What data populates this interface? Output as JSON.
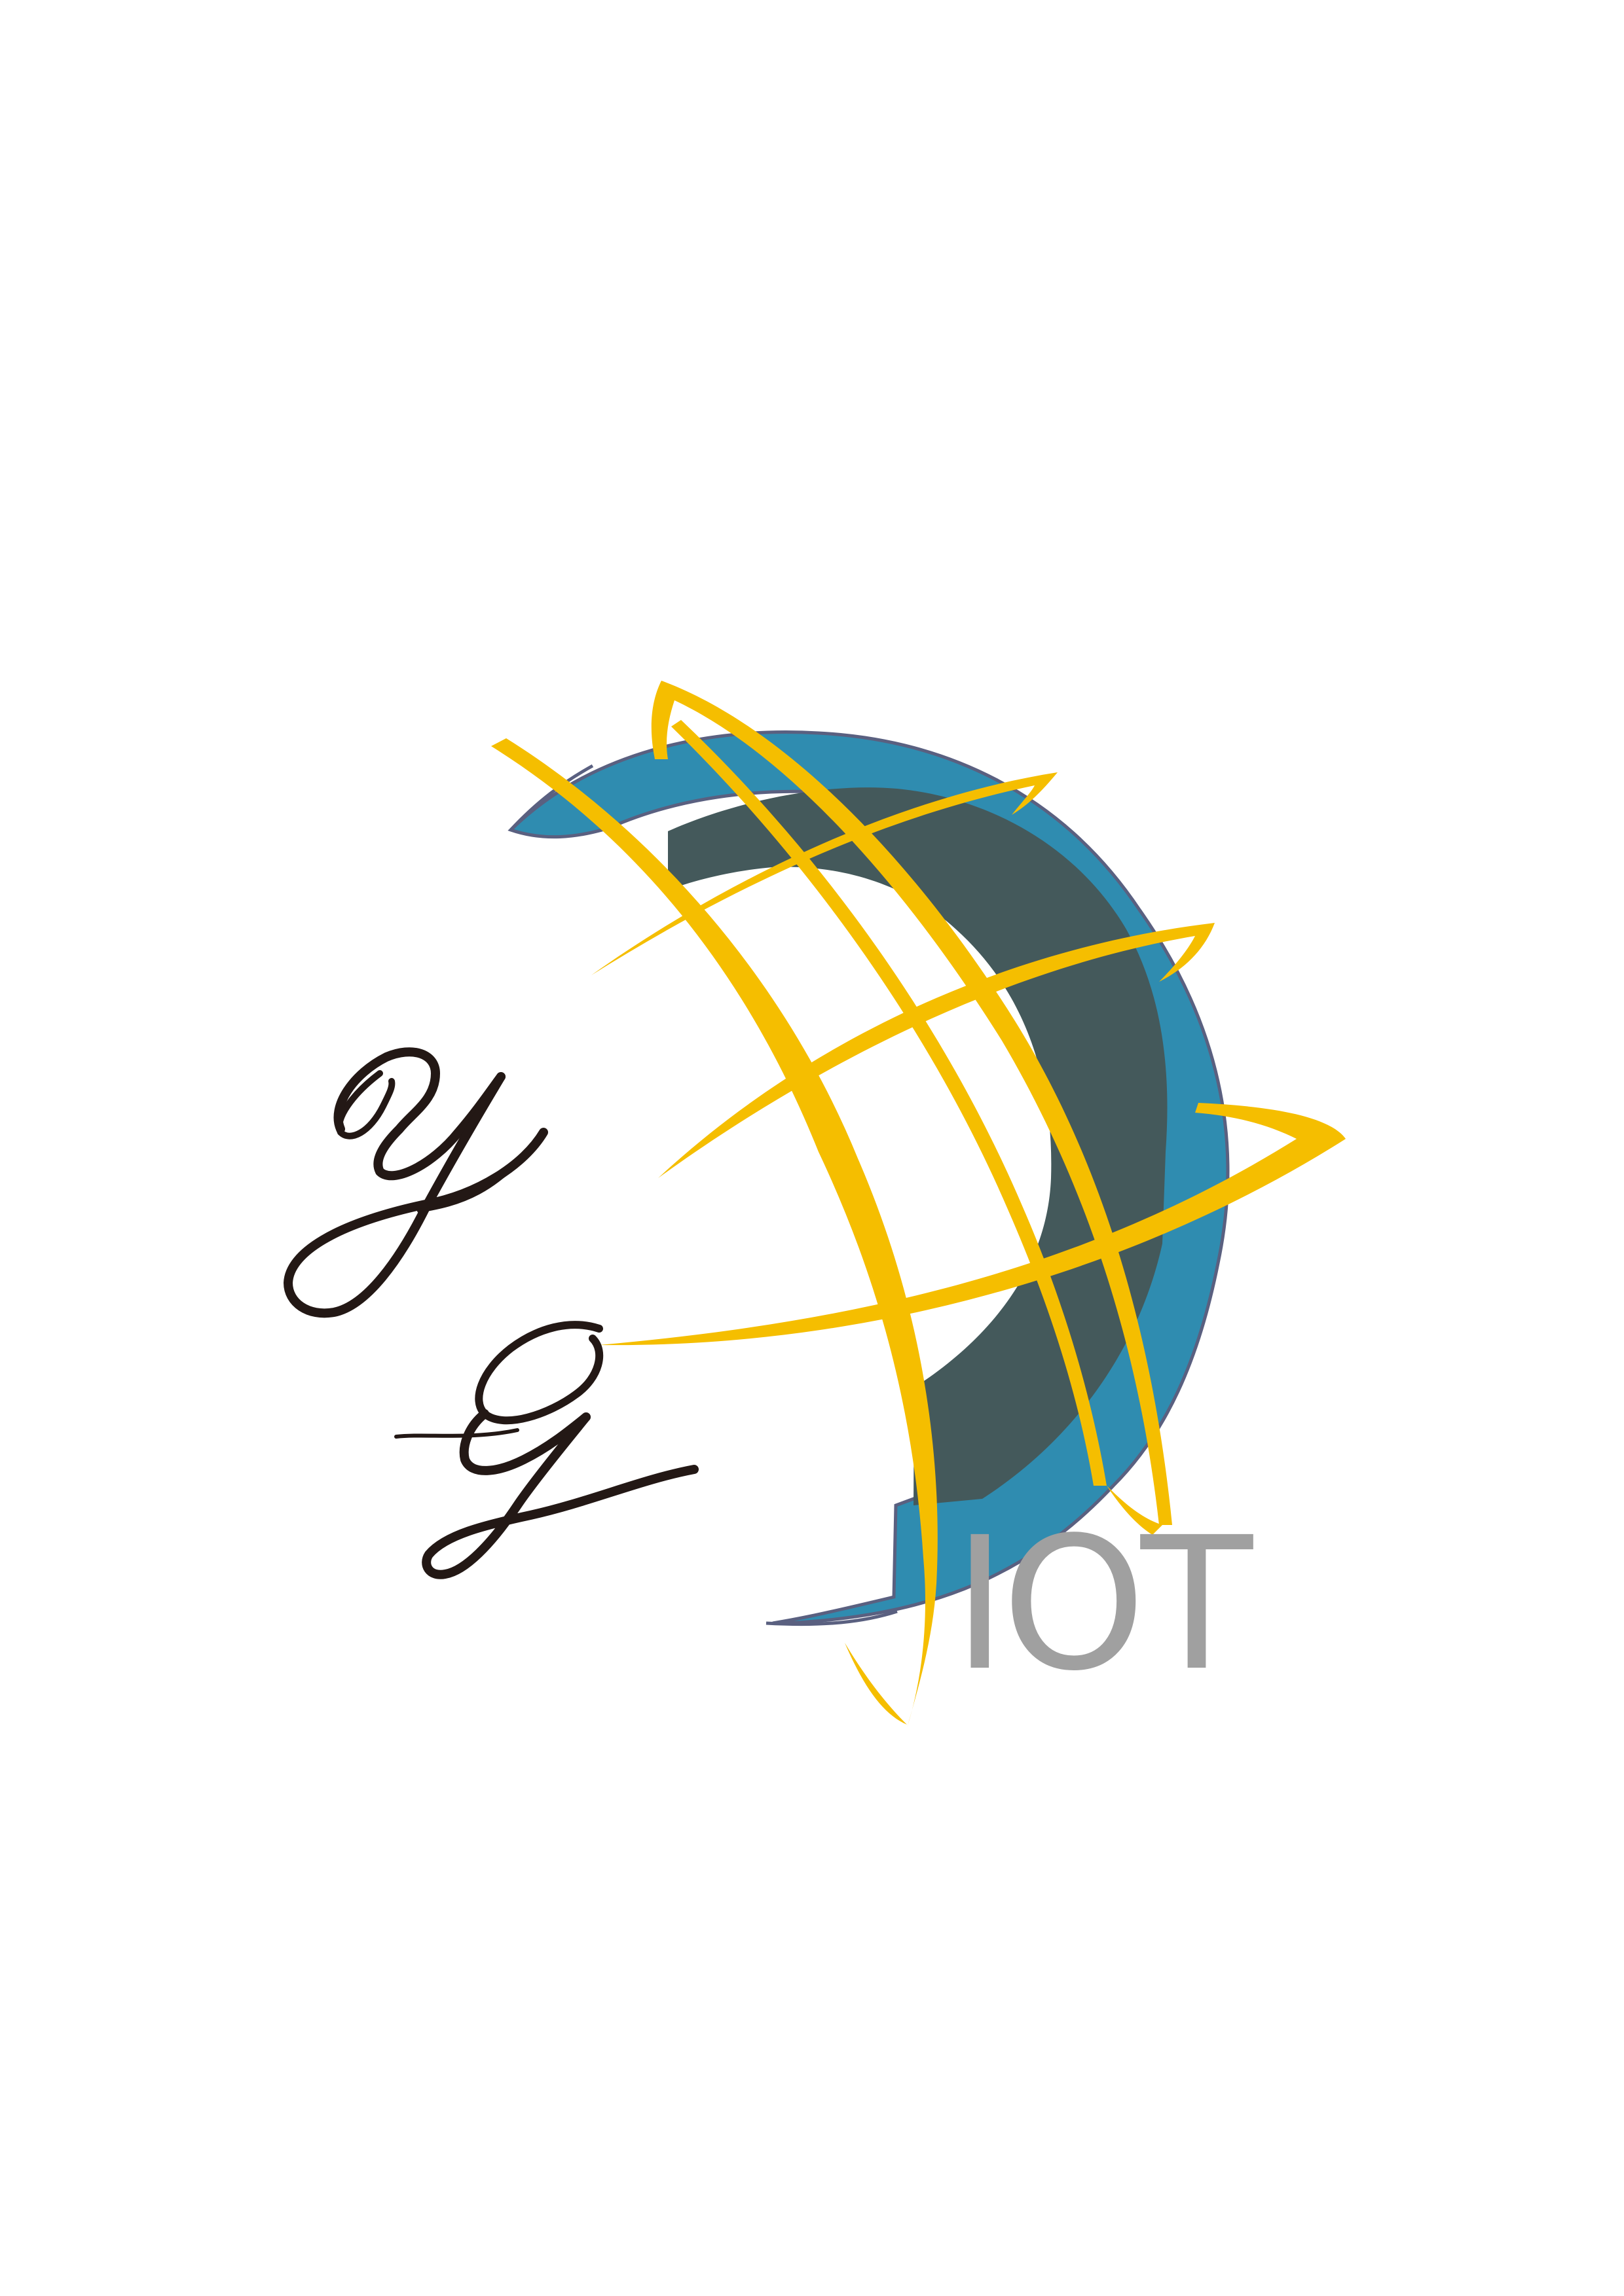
{
  "logo": {
    "monogram_letters": "YG",
    "brand_text": "IOT",
    "colors": {
      "background": "#ffffff",
      "ring_outer": "#2f8cb0",
      "ring_inner": "#44595b",
      "ring_edge": "#5a6080",
      "globe_lines": "#f5be00",
      "script_letters": "#231815",
      "brand_text": "#a0a0a0"
    },
    "icons": [
      "globe-icon",
      "script-monogram"
    ]
  }
}
